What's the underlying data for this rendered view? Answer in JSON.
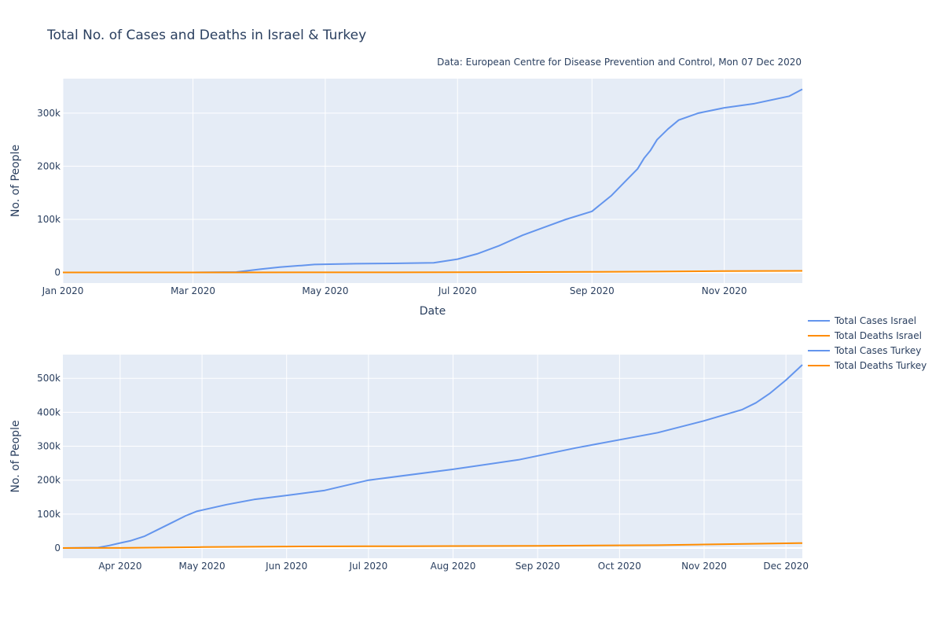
{
  "chart_data": {
    "type": "line",
    "title": "Total No. of Cases and Deaths in Israel & Turkey",
    "source_note": "Data: European Centre for Disease Prevention and Control, Mon 07 Dec 2020",
    "colors": {
      "cases": "#6495ed",
      "deaths": "#ff8c00",
      "plot_bg": "#e5ecf6",
      "grid": "#ffffff"
    },
    "legend": {
      "placement": "right",
      "entries": [
        {
          "name": "Total Cases Israel",
          "color": "#6495ed"
        },
        {
          "name": "Total Deaths Israel",
          "color": "#ff8c00"
        },
        {
          "name": "Total Cases Turkey",
          "color": "#6495ed"
        },
        {
          "name": "Total Deaths Turkey",
          "color": "#ff8c00"
        }
      ]
    },
    "subplots": [
      {
        "name": "Israel",
        "xlabel": "Date",
        "ylabel": "No. of People",
        "xlim": [
          "2020-01-01",
          "2020-12-07"
        ],
        "ylim": [
          -20000,
          365000
        ],
        "x_ticks": [
          "2020-01-01",
          "2020-03-01",
          "2020-05-01",
          "2020-07-01",
          "2020-09-01",
          "2020-11-01"
        ],
        "x_tick_labels": [
          "Jan 2020",
          "Mar 2020",
          "May 2020",
          "Jul 2020",
          "Sep 2020",
          "Nov 2020"
        ],
        "y_ticks": [
          0,
          100000,
          200000,
          300000
        ],
        "y_tick_labels": [
          "0",
          "100k",
          "200k",
          "300k"
        ],
        "grid": true,
        "series": [
          {
            "name": "Total Cases Israel",
            "color": "#6495ed",
            "points": [
              [
                "2020-01-01",
                0
              ],
              [
                "2020-03-01",
                0
              ],
              [
                "2020-03-21",
                700
              ],
              [
                "2020-04-01",
                6000
              ],
              [
                "2020-04-10",
                10000
              ],
              [
                "2020-04-20",
                13000
              ],
              [
                "2020-04-26",
                15000
              ],
              [
                "2020-05-15",
                16500
              ],
              [
                "2020-06-01",
                17000
              ],
              [
                "2020-06-20",
                18000
              ],
              [
                "2020-07-01",
                25000
              ],
              [
                "2020-07-10",
                35000
              ],
              [
                "2020-07-20",
                50000
              ],
              [
                "2020-07-31",
                70000
              ],
              [
                "2020-08-10",
                85000
              ],
              [
                "2020-08-20",
                100000
              ],
              [
                "2020-09-01",
                115000
              ],
              [
                "2020-09-10",
                145000
              ],
              [
                "2020-09-16",
                170000
              ],
              [
                "2020-09-22",
                195000
              ],
              [
                "2020-09-25",
                215000
              ],
              [
                "2020-09-28",
                230000
              ],
              [
                "2020-10-01",
                250000
              ],
              [
                "2020-10-06",
                270000
              ],
              [
                "2020-10-11",
                287000
              ],
              [
                "2020-10-20",
                300000
              ],
              [
                "2020-11-01",
                310000
              ],
              [
                "2020-11-15",
                318000
              ],
              [
                "2020-12-01",
                332000
              ],
              [
                "2020-12-07",
                345000
              ]
            ]
          },
          {
            "name": "Total Deaths Israel",
            "color": "#ff8c00",
            "points": [
              [
                "2020-01-01",
                0
              ],
              [
                "2020-03-20",
                0
              ],
              [
                "2020-05-01",
                200
              ],
              [
                "2020-07-01",
                350
              ],
              [
                "2020-09-01",
                1000
              ],
              [
                "2020-10-01",
                1600
              ],
              [
                "2020-11-01",
                2600
              ],
              [
                "2020-12-07",
                2900
              ]
            ]
          }
        ]
      },
      {
        "name": "Turkey",
        "xlabel": "",
        "ylabel": "No. of People",
        "xlim": [
          "2020-03-11",
          "2020-12-07"
        ],
        "ylim": [
          -30000,
          570000
        ],
        "x_ticks": [
          "2020-04-01",
          "2020-05-01",
          "2020-06-01",
          "2020-07-01",
          "2020-08-01",
          "2020-09-01",
          "2020-10-01",
          "2020-11-01",
          "2020-12-01"
        ],
        "x_tick_labels": [
          "Apr 2020",
          "May 2020",
          "Jun 2020",
          "Jul 2020",
          "Aug 2020",
          "Sep 2020",
          "Oct 2020",
          "Nov 2020",
          "Dec 2020"
        ],
        "y_ticks": [
          0,
          100000,
          200000,
          300000,
          400000,
          500000
        ],
        "y_tick_labels": [
          "0",
          "100k",
          "200k",
          "300k",
          "400k",
          "500k"
        ],
        "grid": true,
        "series": [
          {
            "name": "Total Cases Turkey",
            "color": "#6495ed",
            "points": [
              [
                "2020-03-11",
                0
              ],
              [
                "2020-03-24",
                1500
              ],
              [
                "2020-03-28",
                7500
              ],
              [
                "2020-04-01",
                15000
              ],
              [
                "2020-04-05",
                22000
              ],
              [
                "2020-04-10",
                35000
              ],
              [
                "2020-04-15",
                55000
              ],
              [
                "2020-04-20",
                75000
              ],
              [
                "2020-04-25",
                95000
              ],
              [
                "2020-04-29",
                108000
              ],
              [
                "2020-05-10",
                128000
              ],
              [
                "2020-05-20",
                143000
              ],
              [
                "2020-06-01",
                155000
              ],
              [
                "2020-06-15",
                170000
              ],
              [
                "2020-07-01",
                200000
              ],
              [
                "2020-08-01",
                232000
              ],
              [
                "2020-08-25",
                260000
              ],
              [
                "2020-09-15",
                295000
              ],
              [
                "2020-10-15",
                340000
              ],
              [
                "2020-11-01",
                375000
              ],
              [
                "2020-11-15",
                408000
              ],
              [
                "2020-11-20",
                428000
              ],
              [
                "2020-11-25",
                455000
              ],
              [
                "2020-12-01",
                495000
              ],
              [
                "2020-12-07",
                540000
              ]
            ]
          },
          {
            "name": "Total Deaths Turkey",
            "color": "#ff8c00",
            "points": [
              [
                "2020-03-11",
                0
              ],
              [
                "2020-04-01",
                300
              ],
              [
                "2020-05-01",
                3000
              ],
              [
                "2020-06-01",
                4600
              ],
              [
                "2020-07-01",
                5100
              ],
              [
                "2020-08-01",
                5800
              ],
              [
                "2020-09-01",
                6500
              ],
              [
                "2020-10-15",
                8500
              ],
              [
                "2020-11-01",
                10500
              ],
              [
                "2020-12-07",
                14800
              ]
            ]
          }
        ]
      }
    ]
  }
}
